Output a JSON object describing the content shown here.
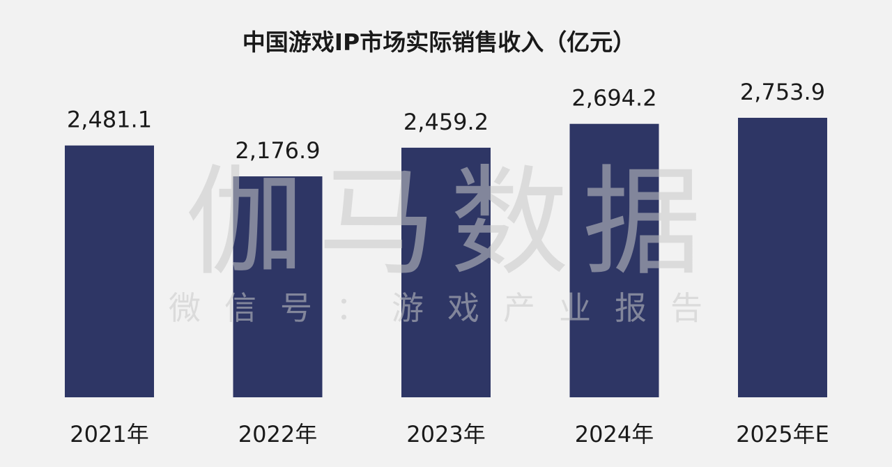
{
  "chart_data": {
    "type": "bar",
    "title": "中国游戏IP市场实际销售收入（亿元）",
    "categories": [
      "2021年",
      "2022年",
      "2023年",
      "2024年",
      "2025年E"
    ],
    "values": [
      2481.1,
      2176.9,
      2459.2,
      2694.2,
      2753.9
    ],
    "value_labels": [
      "2,481.1",
      "2,176.9",
      "2,459.2",
      "2,694.2",
      "2,753.9"
    ],
    "ylim": [
      0,
      2753.9
    ],
    "bar_color": "#2e3665",
    "grid": false,
    "legend": "none"
  },
  "watermark": {
    "main": "伽马数据",
    "sub": "微信号：游戏产业报告"
  },
  "colors": {
    "background": "#f2f2f2",
    "text": "#1a1a1a",
    "watermark": "#c8c8c8"
  }
}
